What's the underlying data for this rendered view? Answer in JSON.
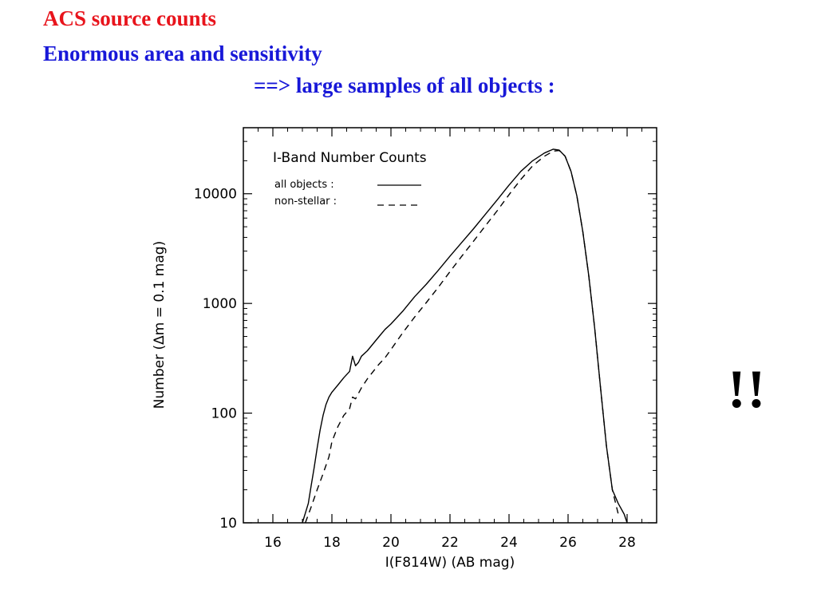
{
  "slide": {
    "title": "ACS source counts",
    "subtitle": "Enormous area and sensitivity",
    "subtitle_line2": "==> large samples of all objects :",
    "annotation": "!!",
    "colors": {
      "title": "#e8141c",
      "subtitle": "#1818d8",
      "text": "#000000"
    }
  },
  "chart_data": {
    "type": "line",
    "title": "I-Band Number Counts",
    "xlabel": "I(F814W) (AB mag)",
    "ylabel": "Number (Δm = 0.1 mag)",
    "xlim": [
      15,
      29
    ],
    "ylim": [
      10,
      40000
    ],
    "yscale": "log",
    "xticks": [
      16,
      18,
      20,
      22,
      24,
      26,
      28
    ],
    "yticks": [
      10,
      100,
      1000,
      10000
    ],
    "ytick_labels": [
      "10",
      "100",
      "1000",
      "10000"
    ],
    "grid": false,
    "legend_position": "top-left",
    "series": [
      {
        "name": "all objects :",
        "style": "solid",
        "x": [
          17.0,
          17.2,
          17.3,
          17.4,
          17.5,
          17.6,
          17.7,
          17.8,
          17.9,
          18.0,
          18.2,
          18.4,
          18.6,
          18.7,
          18.8,
          18.9,
          19.0,
          19.2,
          19.4,
          19.6,
          19.8,
          20.0,
          20.4,
          20.8,
          21.2,
          21.6,
          22.0,
          22.4,
          22.8,
          23.2,
          23.6,
          24.0,
          24.4,
          24.8,
          25.2,
          25.5,
          25.7,
          25.9,
          26.1,
          26.3,
          26.5,
          26.7,
          26.9,
          27.1,
          27.3,
          27.5,
          27.7,
          27.9,
          28.0
        ],
        "y": [
          10,
          15,
          22,
          32,
          48,
          70,
          95,
          120,
          140,
          155,
          180,
          210,
          240,
          330,
          270,
          290,
          330,
          370,
          430,
          500,
          580,
          650,
          850,
          1150,
          1500,
          2000,
          2700,
          3600,
          4800,
          6500,
          8800,
          12000,
          16000,
          20000,
          23500,
          25500,
          25000,
          22000,
          16000,
          9500,
          4500,
          1800,
          600,
          170,
          50,
          20,
          15,
          12,
          10
        ]
      },
      {
        "name": "non-stellar :",
        "style": "dashed",
        "x": [
          17.1,
          17.3,
          17.5,
          17.7,
          17.9,
          18.0,
          18.2,
          18.4,
          18.6,
          18.7,
          18.8,
          19.0,
          19.2,
          19.4,
          19.6,
          19.8,
          20.0,
          20.4,
          20.8,
          21.2,
          21.6,
          22.0,
          22.4,
          22.8,
          23.2,
          23.6,
          24.0,
          24.4,
          24.8,
          25.2,
          25.5,
          25.7,
          25.9,
          26.1,
          26.3,
          26.5,
          26.7,
          26.9,
          27.1,
          27.3,
          27.5,
          27.7
        ],
        "y": [
          10,
          14,
          20,
          28,
          40,
          55,
          75,
          95,
          110,
          140,
          135,
          170,
          205,
          240,
          280,
          320,
          380,
          540,
          750,
          1020,
          1400,
          1950,
          2700,
          3700,
          5100,
          7000,
          9800,
          13500,
          18000,
          22000,
          24500,
          24800,
          22000,
          16000,
          9500,
          4500,
          1800,
          600,
          170,
          50,
          20,
          12
        ]
      }
    ]
  }
}
